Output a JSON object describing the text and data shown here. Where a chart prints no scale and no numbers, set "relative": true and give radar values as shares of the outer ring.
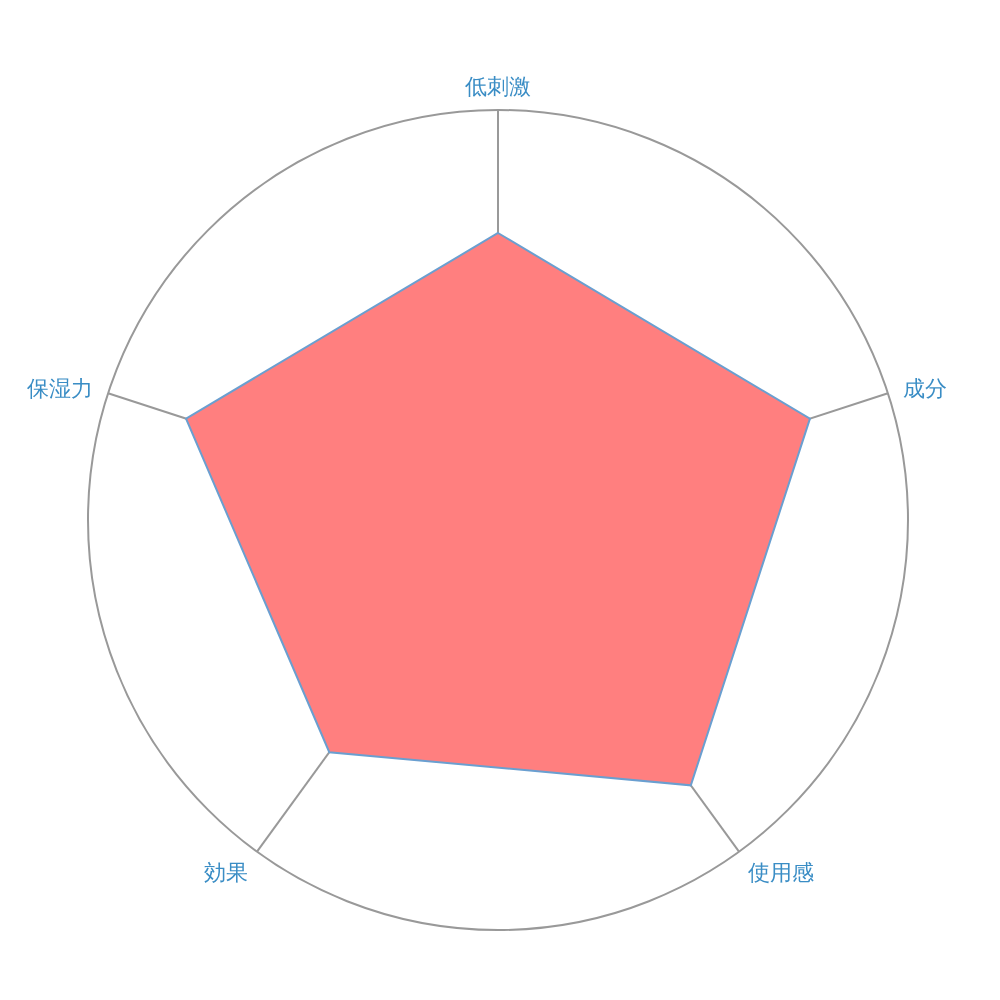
{
  "chart_data": {
    "type": "radar",
    "relative": true,
    "grid": true,
    "categories": [
      "低刺激",
      "成分",
      "使用感",
      "効果",
      "保湿力"
    ],
    "series": [
      {
        "color": "#ff7f7f",
        "values": [
          0.7,
          0.8,
          0.8,
          0.7,
          0.8
        ]
      }
    ]
  }
}
